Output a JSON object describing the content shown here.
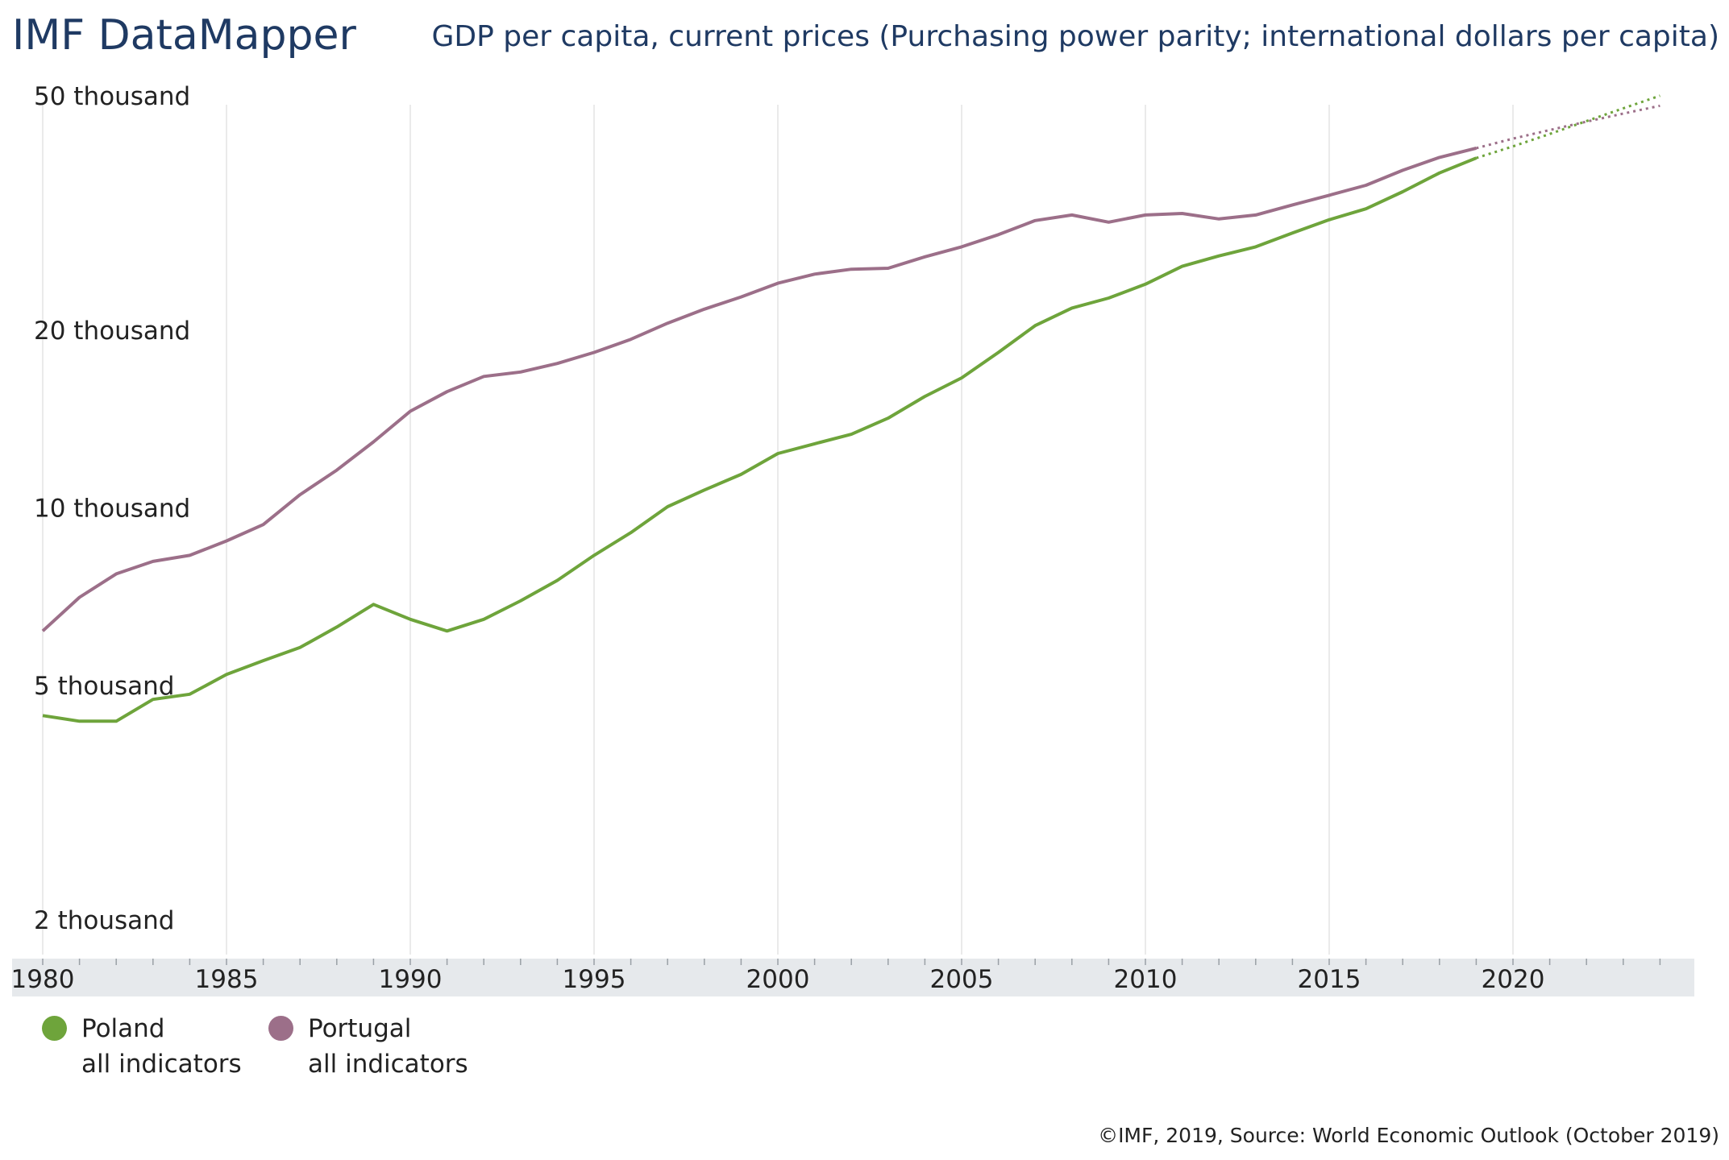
{
  "header": {
    "brand": "IMF DataMapper",
    "title": "GDP per capita, current prices (Purchasing power parity; international dollars per capita)"
  },
  "footer": "©IMF, 2019, Source: World Economic Outlook (October 2019)",
  "legend": [
    {
      "name": "Poland",
      "sub": "all indicators",
      "color": "#6ea43b"
    },
    {
      "name": "Portugal",
      "sub": "all indicators",
      "color": "#9c6f89"
    }
  ],
  "chart_data": {
    "type": "line",
    "y_scale": "log",
    "ylim": [
      2000,
      50000
    ],
    "xlim": [
      1980,
      2024
    ],
    "y_ticks": [
      {
        "value": 50000,
        "label": "50 thousand"
      },
      {
        "value": 20000,
        "label": "20 thousand"
      },
      {
        "value": 10000,
        "label": "10 thousand"
      },
      {
        "value": 5000,
        "label": "5 thousand"
      },
      {
        "value": 2000,
        "label": "2 thousand"
      }
    ],
    "x_ticks": [
      1980,
      1985,
      1990,
      1995,
      2000,
      2005,
      2010,
      2015,
      2020
    ],
    "last_actual_year": 2019,
    "x": [
      1980,
      1981,
      1982,
      1983,
      1984,
      1985,
      1986,
      1987,
      1988,
      1989,
      1990,
      1991,
      1992,
      1993,
      1994,
      1995,
      1996,
      1997,
      1998,
      1999,
      2000,
      2001,
      2002,
      2003,
      2004,
      2005,
      2006,
      2007,
      2008,
      2009,
      2010,
      2011,
      2012,
      2013,
      2014,
      2015,
      2016,
      2017,
      2018,
      2019,
      2020,
      2021,
      2022,
      2023,
      2024
    ],
    "series": [
      {
        "name": "Poland",
        "color": "#6ea43b",
        "values": [
          4600,
          4500,
          4500,
          4900,
          5000,
          5400,
          5700,
          6000,
          6500,
          7100,
          6700,
          6400,
          6700,
          7200,
          7800,
          8600,
          9400,
          10400,
          11100,
          11800,
          12800,
          13300,
          13800,
          14700,
          16000,
          17200,
          19000,
          21100,
          22600,
          23500,
          24800,
          26600,
          27700,
          28700,
          30300,
          31900,
          33300,
          35600,
          38300,
          40600,
          42500,
          44600,
          46900,
          49300,
          51800
        ]
      },
      {
        "name": "Portugal",
        "color": "#9c6f89",
        "values": [
          6400,
          7300,
          8000,
          8400,
          8600,
          9100,
          9700,
          10900,
          12000,
          13400,
          15100,
          16300,
          17300,
          17600,
          18200,
          19000,
          20000,
          21300,
          22500,
          23600,
          24900,
          25800,
          26300,
          26400,
          27600,
          28700,
          30100,
          31800,
          32500,
          31600,
          32500,
          32700,
          32000,
          32500,
          33800,
          35100,
          36500,
          38700,
          40700,
          42200,
          43800,
          45300,
          46800,
          48300,
          49800
        ]
      }
    ]
  }
}
